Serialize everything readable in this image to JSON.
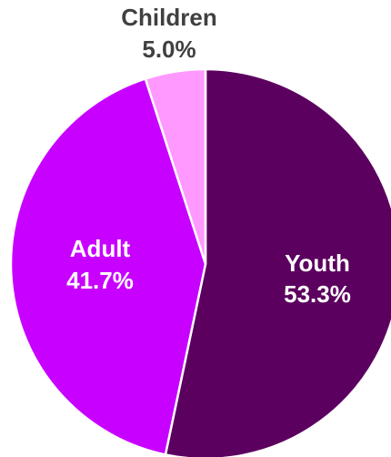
{
  "chart_data": {
    "type": "pie",
    "slices": [
      {
        "label": "Youth",
        "value": 53.3,
        "value_label": "53.3%",
        "color": "#5c0060",
        "label_color": "#ffffff"
      },
      {
        "label": "Adult",
        "value": 41.7,
        "value_label": "41.7%",
        "color": "#c800ff",
        "label_color": "#ffffff"
      },
      {
        "label": "Children",
        "value": 5.0,
        "value_label": "5.0%",
        "color": "#ff99ff",
        "label_color": "#404040"
      }
    ],
    "start_angle": "12 o'clock",
    "direction": "clockwise",
    "legend": "none"
  }
}
